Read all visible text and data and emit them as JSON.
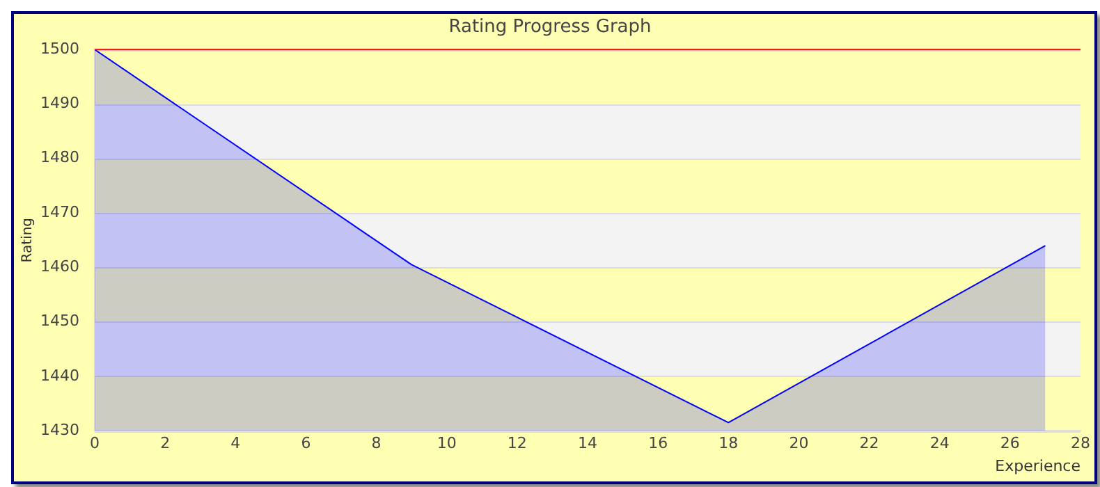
{
  "chart_data": {
    "type": "area",
    "title": "Rating Progress Graph",
    "xlabel": "Experience",
    "ylabel": "Rating",
    "x": [
      0,
      9,
      18,
      27
    ],
    "series": [
      {
        "color": "#0000ff",
        "values": [
          1500,
          1460.5,
          1431.5,
          1464
        ]
      }
    ],
    "xlim": [
      0,
      28
    ],
    "xticks": [
      0,
      2,
      4,
      6,
      8,
      10,
      12,
      14,
      16,
      18,
      20,
      22,
      24,
      26,
      28
    ],
    "ylim": [
      1430,
      1500
    ],
    "yticks": [
      1430,
      1440,
      1450,
      1460,
      1470,
      1480,
      1490,
      1500
    ],
    "ref_lines": [
      {
        "axis": "y",
        "value": 1500,
        "color": "#ff0000"
      }
    ],
    "grid": "y",
    "legend": false,
    "marker": "none",
    "line_style": "solid"
  }
}
